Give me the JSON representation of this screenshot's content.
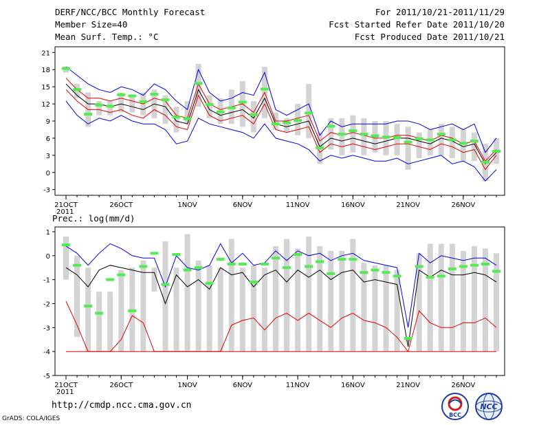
{
  "header": {
    "title": "DERF/NCC/BCC Monthly Forecast",
    "member_size": "Member Size=40",
    "variable": "Mean Surf. Temp.: °C",
    "forecast_period": "For 2011/10/21-2011/11/29",
    "start_date": "Fcst Started Refer Date 2011/10/20",
    "produced_date": "Fcst Produced Date 2011/10/21"
  },
  "footer": {
    "url": "http://cmdp.ncc.cma.gov.cn",
    "credit": "GrADS: COLA/IGES",
    "logo_bcc": "BCC",
    "logo_ncc": "NCC"
  },
  "colors": {
    "box": "#d3d3d3",
    "median": "#52ec52",
    "max_line": "#0000e0",
    "min_line": "#e00000",
    "mean_line": "#000000"
  },
  "chart_data": [
    {
      "type": "line",
      "title": "Mean Surf. Temp.: °C",
      "x": [
        "21OCT",
        "22OCT",
        "23OCT",
        "24OCT",
        "25OCT",
        "26OCT",
        "27OCT",
        "28OCT",
        "29OCT",
        "30OCT",
        "31OCT",
        "1NOV",
        "2NOV",
        "3NOV",
        "4NOV",
        "5NOV",
        "6NOV",
        "7NOV",
        "8NOV",
        "9NOV",
        "10NOV",
        "11NOV",
        "12NOV",
        "13NOV",
        "14NOV",
        "15NOV",
        "16NOV",
        "17NOV",
        "18NOV",
        "19NOV",
        "20NOV",
        "21NOV",
        "22NOV",
        "23NOV",
        "24NOV",
        "25NOV",
        "26NOV",
        "27NOV",
        "28NOV",
        "29NOV"
      ],
      "x_tick_labels": [
        "21OCT\n2011",
        "26OCT",
        "1NOV",
        "6NOV",
        "11NOV",
        "16NOV",
        "21NOV",
        "26NOV"
      ],
      "x_tick_index": [
        0,
        5,
        11,
        16,
        21,
        26,
        31,
        36
      ],
      "ylim": [
        -4,
        22
      ],
      "y_ticks": [
        -3,
        0,
        3,
        6,
        9,
        12,
        15,
        18,
        21
      ],
      "series": [
        {
          "name": "box_high",
          "values": [
            18.5,
            15.5,
            14.0,
            12.5,
            12.5,
            14.0,
            13.5,
            14.0,
            14.5,
            13.5,
            11.5,
            12.5,
            19.0,
            13.5,
            13.0,
            14.5,
            16.0,
            12.5,
            18.5,
            10.5,
            9.5,
            12.0,
            15.5,
            7.0,
            9.5,
            9.5,
            10.0,
            9.5,
            9.0,
            9.0,
            8.5,
            8.0,
            7.0,
            7.5,
            8.5,
            8.0,
            7.5,
            7.0,
            5.0,
            6.0
          ]
        },
        {
          "name": "box_low",
          "values": [
            17.5,
            13.0,
            8.0,
            10.0,
            10.0,
            10.5,
            10.5,
            10.0,
            9.5,
            8.5,
            7.0,
            8.5,
            11.5,
            9.5,
            8.5,
            8.5,
            8.0,
            7.0,
            9.5,
            7.5,
            7.0,
            6.5,
            6.0,
            1.5,
            4.0,
            3.0,
            3.5,
            3.0,
            3.5,
            3.0,
            3.0,
            0.5,
            2.5,
            3.0,
            3.0,
            2.5,
            2.0,
            2.0,
            -1.5,
            1.5
          ]
        },
        {
          "name": "median",
          "values": [
            18.2,
            14.5,
            10.2,
            11.8,
            11.6,
            13.6,
            13.4,
            12.4,
            13.7,
            12.7,
            9.7,
            9.4,
            15.6,
            11.9,
            10.6,
            11.3,
            12.3,
            10.1,
            14.6,
            8.5,
            8.7,
            9.1,
            10.4,
            4.3,
            8.1,
            6.7,
            7.3,
            6.7,
            6.4,
            6.2,
            6.1,
            5.3,
            5.9,
            5.7,
            6.7,
            5.7,
            5.1,
            5.5,
            1.8,
            3.7
          ]
        },
        {
          "name": "maximum",
          "values": [
            18.5,
            17.0,
            15.5,
            14.5,
            14.0,
            15.0,
            14.5,
            13.5,
            15.5,
            14.5,
            12.5,
            11.0,
            18.0,
            14.0,
            12.5,
            13.0,
            14.0,
            13.5,
            17.5,
            11.0,
            10.0,
            11.0,
            12.0,
            6.5,
            9.0,
            8.0,
            8.5,
            8.5,
            8.5,
            8.5,
            9.0,
            9.0,
            8.5,
            7.5,
            8.0,
            8.5,
            7.5,
            8.5,
            3.5,
            6.0
          ]
        },
        {
          "name": "upper",
          "values": [
            16.5,
            14.5,
            13.0,
            13.0,
            12.5,
            13.0,
            12.5,
            12.0,
            13.0,
            12.5,
            10.0,
            9.5,
            15.5,
            12.0,
            11.0,
            11.5,
            12.0,
            10.5,
            14.0,
            9.0,
            9.0,
            9.5,
            10.0,
            5.5,
            7.0,
            6.5,
            7.0,
            6.5,
            6.0,
            6.0,
            6.5,
            6.5,
            6.0,
            5.5,
            6.5,
            6.0,
            5.0,
            5.5,
            2.0,
            4.0
          ]
        },
        {
          "name": "mean",
          "values": [
            15.5,
            13.5,
            12.0,
            12.0,
            11.5,
            12.0,
            11.5,
            11.0,
            12.0,
            11.5,
            9.0,
            8.5,
            14.5,
            11.0,
            10.0,
            10.5,
            11.0,
            9.5,
            13.0,
            8.5,
            8.0,
            8.5,
            9.0,
            4.5,
            6.0,
            5.5,
            6.0,
            5.5,
            5.0,
            5.5,
            6.0,
            6.0,
            5.5,
            5.0,
            6.0,
            5.5,
            4.5,
            5.0,
            1.5,
            3.5
          ]
        },
        {
          "name": "lower",
          "values": [
            14.5,
            12.5,
            11.0,
            11.0,
            10.5,
            11.0,
            10.0,
            9.5,
            11.0,
            10.0,
            8.0,
            7.5,
            13.5,
            10.0,
            9.0,
            9.5,
            10.0,
            8.5,
            12.0,
            7.5,
            7.0,
            7.5,
            8.0,
            3.5,
            5.0,
            4.5,
            5.0,
            4.5,
            4.0,
            4.5,
            5.0,
            5.0,
            4.5,
            4.0,
            5.0,
            4.5,
            3.5,
            4.0,
            0.5,
            3.0
          ]
        },
        {
          "name": "minimum",
          "values": [
            12.5,
            10.0,
            8.5,
            9.5,
            9.0,
            10.0,
            9.0,
            8.5,
            8.5,
            7.5,
            5.0,
            5.5,
            9.5,
            8.5,
            8.0,
            7.5,
            7.0,
            6.0,
            8.5,
            6.0,
            5.5,
            5.0,
            4.0,
            2.0,
            3.0,
            2.5,
            3.0,
            2.5,
            2.0,
            2.0,
            2.5,
            1.5,
            2.0,
            2.5,
            3.0,
            1.5,
            2.0,
            1.0,
            -1.5,
            0.5
          ]
        }
      ]
    },
    {
      "type": "line",
      "title": "Prec.: log(mm/d)",
      "x": [
        "21OCT",
        "22OCT",
        "23OCT",
        "24OCT",
        "25OCT",
        "26OCT",
        "27OCT",
        "28OCT",
        "29OCT",
        "30OCT",
        "31OCT",
        "1NOV",
        "2NOV",
        "3NOV",
        "4NOV",
        "5NOV",
        "6NOV",
        "7NOV",
        "8NOV",
        "9NOV",
        "10NOV",
        "11NOV",
        "12NOV",
        "13NOV",
        "14NOV",
        "15NOV",
        "16NOV",
        "17NOV",
        "18NOV",
        "19NOV",
        "20NOV",
        "21NOV",
        "22NOV",
        "23NOV",
        "24NOV",
        "25NOV",
        "26NOV",
        "27NOV",
        "28NOV",
        "29NOV"
      ],
      "x_tick_labels": [
        "21OCT\n2011",
        "26OCT",
        "1NOV",
        "6NOV",
        "11NOV",
        "16NOV",
        "21NOV",
        "26NOV"
      ],
      "x_tick_index": [
        0,
        5,
        11,
        16,
        21,
        26,
        31,
        36
      ],
      "ylim": [
        -5,
        1.2
      ],
      "y_ticks": [
        -5,
        -4,
        -3,
        -2,
        -1,
        0,
        1
      ],
      "series": [
        {
          "name": "box_high",
          "values": [
            0.8,
            0.0,
            -0.5,
            -1.5,
            -1.5,
            -0.6,
            -0.5,
            -0.2,
            -0.5,
            0.6,
            -0.5,
            0.9,
            -0.2,
            -0.4,
            -0.5,
            0.7,
            -0.5,
            -0.4,
            -0.5,
            0.4,
            0.7,
            0.3,
            0.8,
            0.4,
            0.2,
            0.2,
            0.7,
            -0.3,
            -0.4,
            -0.4,
            -0.6,
            -3.4,
            0.1,
            0.5,
            0.5,
            0.5,
            0.2,
            0.4,
            0.3,
            0.1
          ]
        },
        {
          "name": "box_low",
          "values": [
            -1.0,
            -3.4,
            -4.0,
            -4.0,
            -4.0,
            -4.0,
            -4.0,
            -4.0,
            -1.5,
            -4.0,
            -4.0,
            -4.0,
            -4.0,
            -4.0,
            -4.0,
            -4.0,
            -4.0,
            -4.0,
            -4.0,
            -4.0,
            -4.0,
            -4.0,
            -4.0,
            -4.0,
            -4.0,
            -4.0,
            -4.0,
            -4.0,
            -4.0,
            -4.0,
            -4.0,
            -3.6,
            -4.0,
            -4.0,
            -4.0,
            -4.0,
            -4.0,
            -4.0,
            -4.0,
            -4.0
          ]
        },
        {
          "name": "median",
          "values": [
            0.45,
            -0.4,
            -2.1,
            -2.4,
            -1.0,
            -0.8,
            -2.3,
            -0.45,
            0.1,
            -1.2,
            0.05,
            -0.6,
            -0.5,
            -1.15,
            -0.15,
            -0.35,
            -0.35,
            -1.1,
            -0.35,
            -0.1,
            -0.5,
            0.05,
            -0.45,
            -0.25,
            -0.75,
            -0.15,
            -0.15,
            -0.7,
            -0.6,
            -0.7,
            -0.85,
            -3.45,
            -0.45,
            -0.9,
            -0.85,
            -0.55,
            -0.45,
            -0.4,
            -0.35,
            -0.65
          ]
        },
        {
          "name": "maximum",
          "values": [
            0.4,
            0.1,
            -0.4,
            0.1,
            0.5,
            0.3,
            0.0,
            -0.1,
            -0.1,
            -1.3,
            0.0,
            -0.5,
            -0.6,
            -0.4,
            0.5,
            -0.3,
            0.1,
            -0.4,
            -0.3,
            0.2,
            -0.2,
            0.2,
            0.0,
            0.1,
            -0.2,
            0.0,
            0.1,
            -0.2,
            -0.3,
            -0.4,
            -0.5,
            -3.0,
            0.1,
            -0.3,
            0.0,
            -0.1,
            -0.2,
            -0.1,
            -0.1,
            -0.4
          ]
        },
        {
          "name": "mean",
          "values": [
            -0.5,
            -0.8,
            -1.3,
            -0.6,
            -0.4,
            -0.5,
            -0.6,
            -0.7,
            -0.7,
            -2.0,
            -0.8,
            -1.3,
            -1.0,
            -1.4,
            -0.5,
            -0.8,
            -0.7,
            -1.3,
            -0.8,
            -0.6,
            -1.1,
            -0.6,
            -0.9,
            -0.6,
            -1.0,
            -0.7,
            -0.6,
            -1.1,
            -1.0,
            -1.1,
            -1.2,
            -3.8,
            -0.6,
            -0.9,
            -0.6,
            -0.8,
            -0.8,
            -0.7,
            -0.8,
            -1.1
          ]
        },
        {
          "name": "minimum",
          "values": [
            -1.9,
            -2.9,
            -4.0,
            -4.0,
            -4.0,
            -3.5,
            -2.5,
            -2.8,
            -4.0,
            -4.0,
            -4.0,
            -4.0,
            -4.0,
            -4.0,
            -4.0,
            -2.9,
            -2.7,
            -2.6,
            -3.1,
            -2.6,
            -2.4,
            -2.7,
            -2.4,
            -2.7,
            -3.0,
            -2.6,
            -2.4,
            -2.7,
            -2.8,
            -3.0,
            -3.4,
            -4.0,
            -2.3,
            -2.8,
            -3.0,
            -3.0,
            -2.8,
            -2.8,
            -2.6,
            -3.0
          ]
        },
        {
          "name": "floor",
          "values": [
            -4.0,
            -4.0,
            -4.0,
            -4.0,
            -4.0,
            -4.0,
            -4.0,
            -4.0,
            -4.0,
            -4.0,
            -4.0,
            -4.0,
            -4.0,
            -4.0,
            -4.0,
            -4.0,
            -4.0,
            -4.0,
            -4.0,
            -4.0,
            -4.0,
            -4.0,
            -4.0,
            -4.0,
            -4.0,
            -4.0,
            -4.0,
            -4.0,
            -4.0,
            -4.0,
            -4.0,
            -4.0,
            -4.0,
            -4.0,
            -4.0,
            -4.0,
            -4.0,
            -4.0,
            -4.0,
            -4.0
          ]
        }
      ]
    }
  ]
}
